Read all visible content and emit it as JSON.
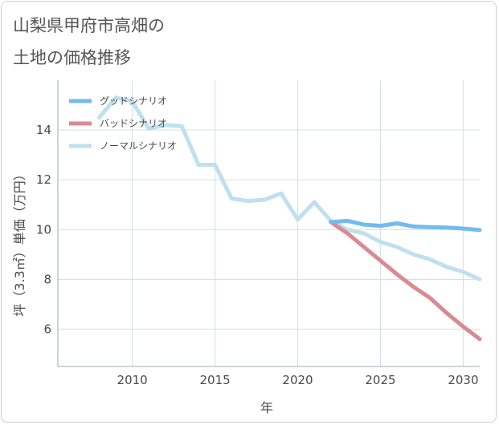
{
  "chart_data": {
    "type": "line",
    "title": [
      "山梨県甲府市高畑の",
      "土地の価格推移"
    ],
    "xlabel": "年",
    "ylabel": "坪（3.3㎡）単価（万円）",
    "xlim": [
      2005.5,
      2031
    ],
    "ylim": [
      4.5,
      16
    ],
    "x_ticks": [
      2010,
      2015,
      2020,
      2025,
      2030
    ],
    "y_ticks": [
      6,
      8,
      10,
      12,
      14
    ],
    "grid": true,
    "legend_position": "top-left",
    "series": [
      {
        "name": "グッドシナリオ",
        "color": "#72bbec",
        "points": [
          [
            2022,
            10.3
          ],
          [
            2023,
            10.35
          ],
          [
            2024,
            10.2
          ],
          [
            2025,
            10.15
          ],
          [
            2026,
            10.25
          ],
          [
            2027,
            10.12
          ],
          [
            2028,
            10.1
          ],
          [
            2029,
            10.08
          ],
          [
            2030,
            10.04
          ],
          [
            2031,
            9.98
          ]
        ]
      },
      {
        "name": "バッドシナリオ",
        "color": "#d98a92",
        "points": [
          [
            2022,
            10.3
          ],
          [
            2023,
            9.85
          ],
          [
            2024,
            9.3
          ],
          [
            2025,
            8.75
          ],
          [
            2026,
            8.2
          ],
          [
            2027,
            7.7
          ],
          [
            2028,
            7.25
          ],
          [
            2029,
            6.65
          ],
          [
            2030,
            6.1
          ],
          [
            2031,
            5.6
          ]
        ]
      },
      {
        "name": "ノーマルシナリオ",
        "color": "#bfe0ee",
        "points": [
          [
            2008,
            14.5
          ],
          [
            2009,
            15.3
          ],
          [
            2010,
            15.15
          ],
          [
            2011,
            14.05
          ],
          [
            2012,
            14.2
          ],
          [
            2013,
            14.15
          ],
          [
            2014,
            12.6
          ],
          [
            2015,
            12.6
          ],
          [
            2016,
            11.25
          ],
          [
            2017,
            11.15
          ],
          [
            2018,
            11.2
          ],
          [
            2019,
            11.45
          ],
          [
            2020,
            10.4
          ],
          [
            2021,
            11.1
          ],
          [
            2022,
            10.35
          ],
          [
            2023,
            10.0
          ],
          [
            2024,
            9.85
          ],
          [
            2025,
            9.5
          ],
          [
            2026,
            9.3
          ],
          [
            2027,
            9.0
          ],
          [
            2028,
            8.8
          ],
          [
            2029,
            8.5
          ],
          [
            2030,
            8.3
          ],
          [
            2031,
            8.0
          ]
        ]
      }
    ]
  }
}
